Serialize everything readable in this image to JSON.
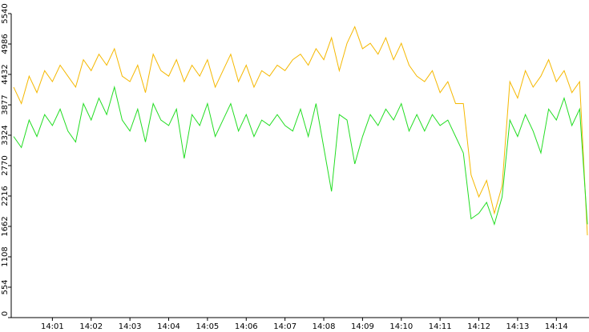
{
  "chart_data": {
    "type": "line",
    "categories": [
      null,
      null,
      null,
      null,
      null,
      "14:01",
      null,
      null,
      null,
      null,
      "14:02",
      null,
      null,
      null,
      null,
      "14:03",
      null,
      null,
      null,
      null,
      "14:04",
      null,
      null,
      null,
      null,
      "14:05",
      null,
      null,
      null,
      null,
      "14:06",
      null,
      null,
      null,
      null,
      "14:07",
      null,
      null,
      null,
      null,
      "14:08",
      null,
      null,
      null,
      null,
      "14:09",
      null,
      null,
      null,
      null,
      "14:10",
      null,
      null,
      null,
      null,
      "14:11",
      null,
      null,
      null,
      null,
      "14:12",
      null,
      null,
      null,
      null,
      "14:13",
      null,
      null,
      null,
      null,
      "14:14",
      null,
      null,
      null,
      null
    ],
    "series": [
      {
        "color": "#f5b800",
        "values": [
          4200,
          3900,
          4400,
          4100,
          4500,
          4300,
          4600,
          4400,
          4200,
          4700,
          4500,
          4800,
          4600,
          4900,
          4400,
          4300,
          4600,
          4100,
          4800,
          4500,
          4400,
          4700,
          4300,
          4600,
          4400,
          4700,
          4200,
          4500,
          4800,
          4300,
          4600,
          4200,
          4500,
          4400,
          4600,
          4500,
          4700,
          4800,
          4600,
          4900,
          4700,
          5100,
          4500,
          5000,
          5300,
          4900,
          5000,
          4800,
          5100,
          4700,
          5000,
          4600,
          4400,
          4300,
          4500,
          4100,
          4300,
          3900,
          3900,
          2600,
          2200,
          2500,
          1900,
          2400,
          4300,
          4000,
          4500,
          4200,
          4400,
          4700,
          4300,
          4500,
          4100,
          4300,
          1500
        ]
      },
      {
        "color": "#22dd22",
        "values": [
          3300,
          3100,
          3600,
          3300,
          3700,
          3500,
          3800,
          3400,
          3200,
          3900,
          3600,
          4000,
          3700,
          4200,
          3600,
          3400,
          3800,
          3200,
          3900,
          3600,
          3500,
          3800,
          2900,
          3700,
          3500,
          3900,
          3300,
          3600,
          3900,
          3400,
          3700,
          3300,
          3600,
          3500,
          3700,
          3500,
          3400,
          3800,
          3300,
          3900,
          3100,
          2300,
          3700,
          3600,
          2800,
          3300,
          3700,
          3500,
          3800,
          3600,
          3900,
          3400,
          3700,
          3400,
          3700,
          3500,
          3600,
          3300,
          3000,
          1800,
          1900,
          2100,
          1700,
          2200,
          3600,
          3300,
          3700,
          3400,
          3000,
          3800,
          3600,
          4000,
          3500,
          3800,
          1700
        ]
      }
    ],
    "ylim": [
      0,
      5540
    ],
    "yticks": [
      0,
      554,
      1108,
      1662,
      2216,
      2770,
      3324,
      3877,
      4432,
      4986,
      5540
    ]
  }
}
